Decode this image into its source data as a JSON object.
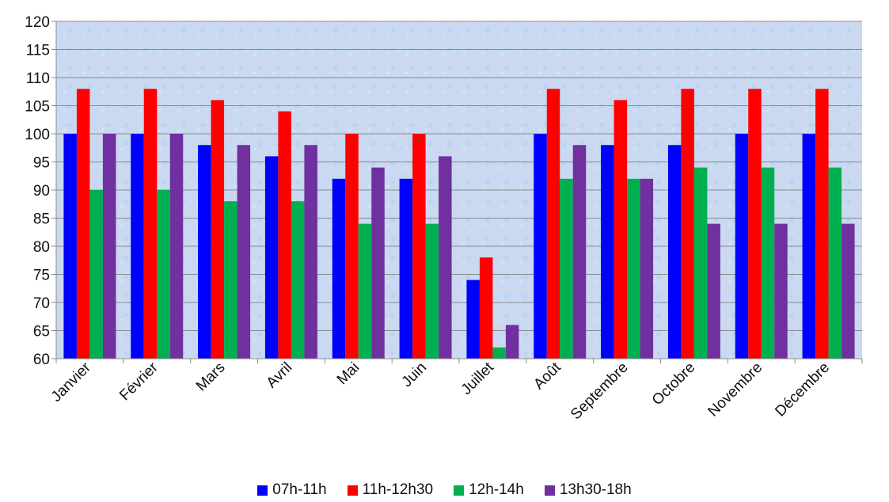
{
  "chart_data": {
    "type": "bar",
    "categories": [
      "Janvier",
      "Février",
      "Mars",
      "Avril",
      "Mai",
      "Juin",
      "Juillet",
      "Août",
      "Septembre",
      "Octobre",
      "Novembre",
      "Décembre"
    ],
    "series": [
      {
        "name": "07h-11h",
        "color": "#0000ff",
        "values": [
          100,
          100,
          98,
          96,
          92,
          92,
          74,
          100,
          98,
          98,
          100,
          100
        ]
      },
      {
        "name": "11h-12h30",
        "color": "#ff0000",
        "values": [
          108,
          108,
          106,
          104,
          100,
          100,
          78,
          108,
          106,
          108,
          108,
          108
        ]
      },
      {
        "name": "12h-14h",
        "color": "#00b050",
        "values": [
          90,
          90,
          88,
          88,
          84,
          84,
          62,
          92,
          92,
          94,
          94,
          94
        ]
      },
      {
        "name": "13h30-18h",
        "color": "#7030a0",
        "values": [
          100,
          100,
          98,
          98,
          94,
          96,
          66,
          98,
          92,
          84,
          84,
          84
        ]
      }
    ],
    "ylim": [
      60,
      120
    ],
    "yticks": [
      60,
      65,
      70,
      75,
      80,
      85,
      90,
      95,
      100,
      105,
      110,
      115,
      120
    ],
    "grid": true,
    "legend_position": "bottom",
    "plot_background": "#c8d8f0"
  }
}
